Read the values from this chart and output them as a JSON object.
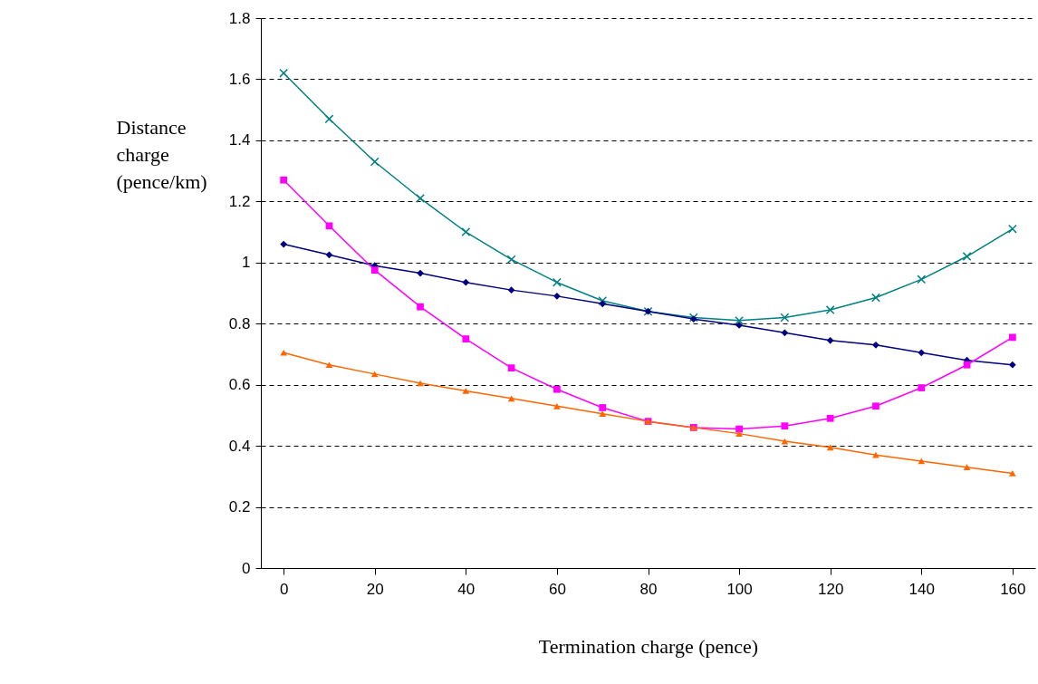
{
  "chart_data": {
    "type": "line",
    "xlabel": "Termination charge (pence)",
    "ylabel": "Distance charge (pence/km)",
    "x": [
      0,
      10,
      20,
      30,
      40,
      50,
      60,
      70,
      80,
      90,
      100,
      110,
      120,
      130,
      140,
      150,
      160
    ],
    "xlim": [
      -5,
      165
    ],
    "xticks": [
      0,
      20,
      40,
      60,
      80,
      100,
      120,
      140,
      160
    ],
    "ylim": [
      0,
      1.8
    ],
    "yticks": [
      0,
      0.2,
      0.4,
      0.6,
      0.8,
      1,
      1.2,
      1.4,
      1.6,
      1.8
    ],
    "grid": "y",
    "line_style": "solid",
    "series": [
      {
        "color": "#008080",
        "marker": "cross",
        "values": [
          1.62,
          1.47,
          1.33,
          1.21,
          1.1,
          1.01,
          0.935,
          0.875,
          0.84,
          0.82,
          0.81,
          0.82,
          0.845,
          0.885,
          0.945,
          1.02,
          1.11
        ]
      },
      {
        "color": "#000080",
        "marker": "diamond",
        "values": [
          1.06,
          1.025,
          0.99,
          0.965,
          0.935,
          0.91,
          0.89,
          0.865,
          0.84,
          0.815,
          0.795,
          0.77,
          0.745,
          0.73,
          0.705,
          0.68,
          0.665
        ]
      },
      {
        "color": "#ff00ff",
        "marker": "square",
        "values": [
          1.27,
          1.12,
          0.975,
          0.855,
          0.75,
          0.655,
          0.585,
          0.525,
          0.48,
          0.46,
          0.455,
          0.465,
          0.49,
          0.53,
          0.59,
          0.665,
          0.755
        ]
      },
      {
        "color": "#ff6600",
        "marker": "triangle",
        "values": [
          0.705,
          0.665,
          0.635,
          0.605,
          0.58,
          0.555,
          0.53,
          0.505,
          0.48,
          0.46,
          0.44,
          0.415,
          0.395,
          0.37,
          0.35,
          0.33,
          0.31
        ]
      }
    ]
  }
}
